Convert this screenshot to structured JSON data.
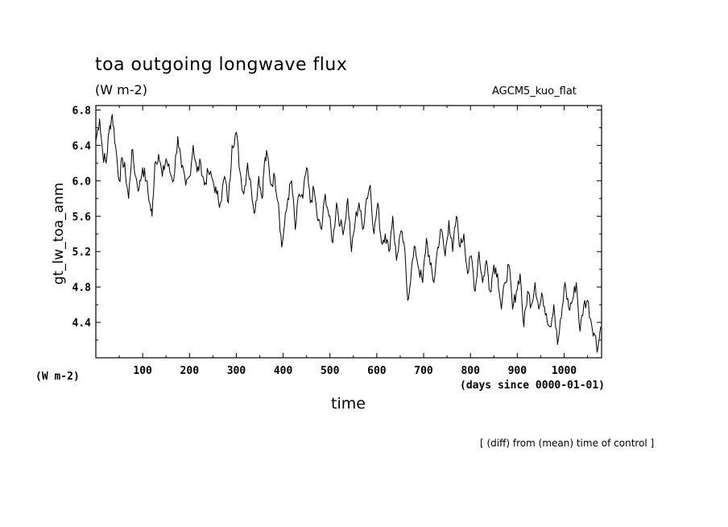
{
  "header": {
    "title": "toa outgoing longwave flux",
    "units": "(W m-2)",
    "run_name": "AGCM5_kuo_flat"
  },
  "footer": {
    "note": "[ (diff) from (mean) time of control ]",
    "left_units": "(W m-2)",
    "x_unit": "(days since 0000-01-01)"
  },
  "chart_data": {
    "type": "line",
    "title": "toa outgoing longwave flux",
    "xlabel": "time",
    "ylabel": "gt_lw_toa_anm",
    "xlim": [
      0,
      1080
    ],
    "ylim": [
      4.0,
      6.85
    ],
    "xticks": [
      100,
      200,
      300,
      400,
      500,
      600,
      700,
      800,
      900,
      1000
    ],
    "xtick_labels": [
      "100",
      "200",
      "300",
      "400",
      "500",
      "600",
      "700",
      "800",
      "900",
      "1000"
    ],
    "yticks": [
      4.4,
      4.8,
      5.2,
      5.6,
      6.0,
      6.4,
      6.8
    ],
    "ytick_labels": [
      "4.4",
      "4.8",
      "5.2",
      "5.6",
      "6.0",
      "6.4",
      "6.8"
    ],
    "x_minor_step": 50,
    "y_minor_step": 0.2,
    "grid": false,
    "series": [
      {
        "name": "gt_lw_toa_anm",
        "x": [
          0,
          8,
          15,
          22,
          28,
          35,
          42,
          50,
          57,
          63,
          70,
          77,
          85,
          92,
          100,
          108,
          115,
          120,
          126,
          134,
          142,
          150,
          158,
          166,
          175,
          183,
          192,
          200,
          208,
          216,
          224,
          232,
          240,
          250,
          258,
          266,
          275,
          283,
          291,
          300,
          308,
          316,
          324,
          332,
          340,
          348,
          355,
          360,
          366,
          374,
          382,
          390,
          397,
          403,
          410,
          418,
          426,
          434,
          442,
          450,
          458,
          466,
          474,
          482,
          490,
          498,
          506,
          514,
          522,
          530,
          538,
          546,
          554,
          562,
          570,
          578,
          586,
          594,
          602,
          610,
          618,
          626,
          634,
          642,
          650,
          658,
          666,
          674,
          682,
          690,
          698,
          706,
          714,
          722,
          730,
          738,
          746,
          754,
          762,
          770,
          778,
          786,
          794,
          802,
          810,
          818,
          826,
          834,
          842,
          850,
          858,
          866,
          874,
          882,
          890,
          898,
          906,
          914,
          922,
          930,
          938,
          946,
          954,
          962,
          970,
          978,
          986,
          994,
          1002,
          1010,
          1018,
          1026,
          1034,
          1042,
          1050,
          1058,
          1066,
          1072,
          1078
        ],
        "values": [
          6.45,
          6.7,
          6.3,
          6.2,
          6.55,
          6.75,
          6.4,
          6.0,
          6.25,
          6.1,
          5.8,
          6.35,
          6.05,
          5.9,
          6.15,
          6.0,
          5.75,
          5.6,
          6.2,
          6.3,
          6.05,
          6.25,
          6.1,
          6.0,
          6.5,
          6.15,
          5.95,
          6.05,
          6.4,
          6.1,
          6.2,
          5.95,
          6.1,
          6.0,
          5.85,
          5.75,
          6.05,
          5.75,
          6.4,
          6.55,
          6.1,
          5.85,
          6.2,
          5.9,
          5.65,
          6.05,
          5.8,
          6.2,
          6.3,
          5.95,
          6.05,
          5.75,
          5.25,
          5.5,
          5.8,
          6.0,
          5.45,
          5.85,
          5.8,
          6.15,
          5.75,
          5.9,
          5.55,
          5.45,
          5.85,
          5.6,
          5.3,
          5.75,
          5.5,
          5.45,
          5.8,
          5.2,
          5.55,
          5.75,
          5.45,
          5.8,
          5.95,
          5.4,
          5.75,
          5.3,
          5.4,
          5.2,
          5.6,
          5.1,
          5.4,
          5.3,
          4.65,
          5.0,
          5.25,
          5.0,
          4.85,
          5.35,
          5.05,
          4.85,
          5.25,
          5.45,
          5.15,
          5.55,
          5.2,
          5.6,
          5.25,
          5.4,
          4.95,
          5.15,
          4.75,
          5.2,
          4.85,
          5.1,
          4.75,
          5.05,
          4.95,
          4.55,
          4.85,
          5.05,
          4.55,
          4.75,
          4.95,
          4.35,
          4.75,
          4.6,
          4.85,
          4.55,
          4.7,
          4.5,
          4.35,
          4.6,
          4.15,
          4.45,
          4.85,
          4.55,
          4.65,
          4.85,
          4.3,
          4.6,
          4.65,
          4.4,
          4.25,
          4.1,
          4.35
        ]
      }
    ]
  }
}
